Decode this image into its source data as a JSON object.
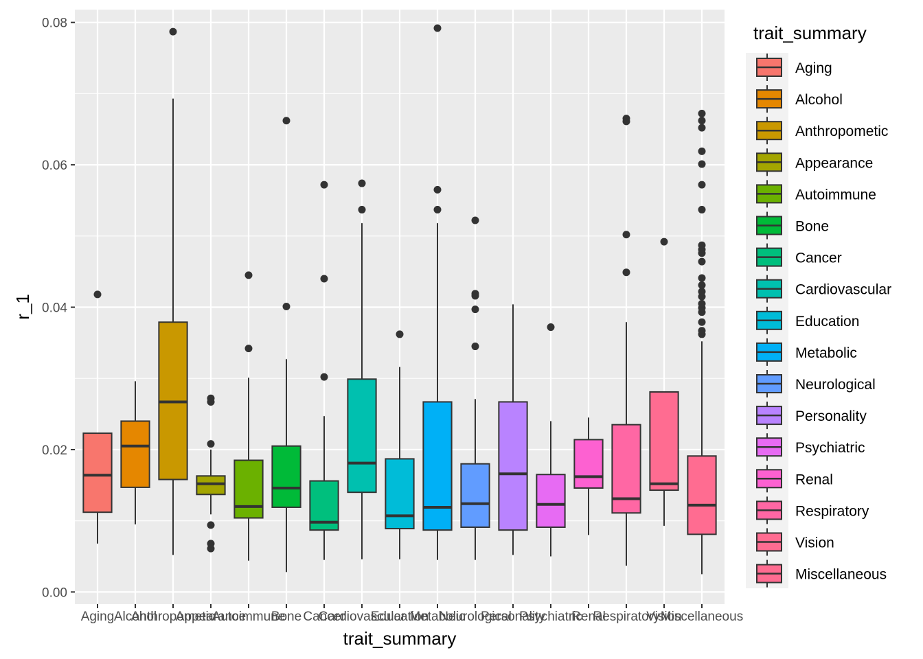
{
  "chart_data": {
    "type": "boxplot",
    "xlabel": "trait_summary",
    "ylabel": "r_1",
    "ylim": [
      -0.0017,
      0.0818
    ],
    "y_ticks": [
      "0.00",
      "0.02",
      "0.04",
      "0.06",
      "0.08"
    ],
    "y_tick_values": [
      0,
      0.02,
      0.04,
      0.06,
      0.08
    ],
    "legend": {
      "title": "trait_summary",
      "placement": "right"
    },
    "grid": true,
    "categories": [
      "Aging",
      "Alcohol",
      "Anthropometic",
      "Appearance",
      "Autoimmune",
      "Bone",
      "Cancer",
      "Cardiovascular",
      "Education",
      "Metabolic",
      "Neurological",
      "Personality",
      "Psychiatric",
      "Renal",
      "Respiratory",
      "Vision",
      "Miscellaneous"
    ],
    "colors": [
      "#F8766D",
      "#E58700",
      "#C99800",
      "#A3A500",
      "#6BB100",
      "#00BA38",
      "#00BF7D",
      "#00C0AF",
      "#00BCD8",
      "#00B0F6",
      "#619CFF",
      "#B983FF",
      "#E76BF3",
      "#FD61D1",
      "#FF67A4",
      "#FF6C91",
      "#FF6C91"
    ],
    "boxes": [
      {
        "category": "Aging",
        "whisker_low": 0.0068,
        "q1": 0.0112,
        "median": 0.0164,
        "q3": 0.0223,
        "whisker_high": 0.0223,
        "outliers": [
          0.0418
        ]
      },
      {
        "category": "Alcohol",
        "whisker_low": 0.0095,
        "q1": 0.0147,
        "median": 0.0205,
        "q3": 0.024,
        "whisker_high": 0.0296,
        "outliers": []
      },
      {
        "category": "Anthropometic",
        "whisker_low": 0.0052,
        "q1": 0.0158,
        "median": 0.0267,
        "q3": 0.0379,
        "whisker_high": 0.0693,
        "outliers": [
          0.0787
        ]
      },
      {
        "category": "Appearance",
        "whisker_low": 0.0109,
        "q1": 0.0137,
        "median": 0.0152,
        "q3": 0.0163,
        "whisker_high": 0.02,
        "outliers": [
          0.0061,
          0.0068,
          0.0094,
          0.0208,
          0.0267,
          0.0272
        ]
      },
      {
        "category": "Autoimmune",
        "whisker_low": 0.0044,
        "q1": 0.0104,
        "median": 0.012,
        "q3": 0.0185,
        "whisker_high": 0.0301,
        "outliers": [
          0.0342,
          0.0445
        ]
      },
      {
        "category": "Bone",
        "whisker_low": 0.0028,
        "q1": 0.0119,
        "median": 0.0146,
        "q3": 0.0205,
        "whisker_high": 0.0327,
        "outliers": [
          0.0401,
          0.0662
        ]
      },
      {
        "category": "Cancer",
        "whisker_low": 0.0045,
        "q1": 0.0087,
        "median": 0.0098,
        "q3": 0.0156,
        "whisker_high": 0.0247,
        "outliers": [
          0.0302,
          0.044,
          0.0572
        ]
      },
      {
        "category": "Cardiovascular",
        "whisker_low": 0.0046,
        "q1": 0.014,
        "median": 0.0181,
        "q3": 0.0299,
        "whisker_high": 0.0518,
        "outliers": [
          0.0537,
          0.0574
        ]
      },
      {
        "category": "Education",
        "whisker_low": 0.0046,
        "q1": 0.0089,
        "median": 0.0107,
        "q3": 0.0187,
        "whisker_high": 0.0316,
        "outliers": [
          0.0362
        ]
      },
      {
        "category": "Metabolic",
        "whisker_low": 0.0045,
        "q1": 0.0087,
        "median": 0.0119,
        "q3": 0.0267,
        "whisker_high": 0.0518,
        "outliers": [
          0.0537,
          0.0565,
          0.0792
        ]
      },
      {
        "category": "Neurological",
        "whisker_low": 0.0045,
        "q1": 0.0091,
        "median": 0.0124,
        "q3": 0.018,
        "whisker_high": 0.0271,
        "outliers": [
          0.0345,
          0.0397,
          0.0416,
          0.0419,
          0.0522
        ]
      },
      {
        "category": "Personality",
        "whisker_low": 0.0052,
        "q1": 0.0087,
        "median": 0.0166,
        "q3": 0.0267,
        "whisker_high": 0.0404,
        "outliers": []
      },
      {
        "category": "Psychiatric",
        "whisker_low": 0.005,
        "q1": 0.0091,
        "median": 0.0123,
        "q3": 0.0165,
        "whisker_high": 0.024,
        "outliers": [
          0.0372
        ]
      },
      {
        "category": "Renal",
        "whisker_low": 0.008,
        "q1": 0.0146,
        "median": 0.0162,
        "q3": 0.0214,
        "whisker_high": 0.0245,
        "outliers": []
      },
      {
        "category": "Respiratory",
        "whisker_low": 0.0037,
        "q1": 0.0111,
        "median": 0.0131,
        "q3": 0.0235,
        "whisker_high": 0.0379,
        "outliers": [
          0.0449,
          0.0502,
          0.0661,
          0.0665
        ]
      },
      {
        "category": "Vision",
        "whisker_low": 0.0093,
        "q1": 0.0143,
        "median": 0.0152,
        "q3": 0.0281,
        "whisker_high": 0.0281,
        "outliers": [
          0.0492
        ]
      },
      {
        "category": "Miscellaneous",
        "whisker_low": 0.0025,
        "q1": 0.0081,
        "median": 0.0122,
        "q3": 0.0191,
        "whisker_high": 0.0352,
        "outliers": [
          0.0362,
          0.0367,
          0.0379,
          0.0393,
          0.0399,
          0.0405,
          0.0415,
          0.0422,
          0.0431,
          0.0441,
          0.0464,
          0.0476,
          0.0481,
          0.0487,
          0.0537,
          0.0572,
          0.0601,
          0.0619,
          0.0652,
          0.0662,
          0.0672
        ]
      }
    ]
  }
}
